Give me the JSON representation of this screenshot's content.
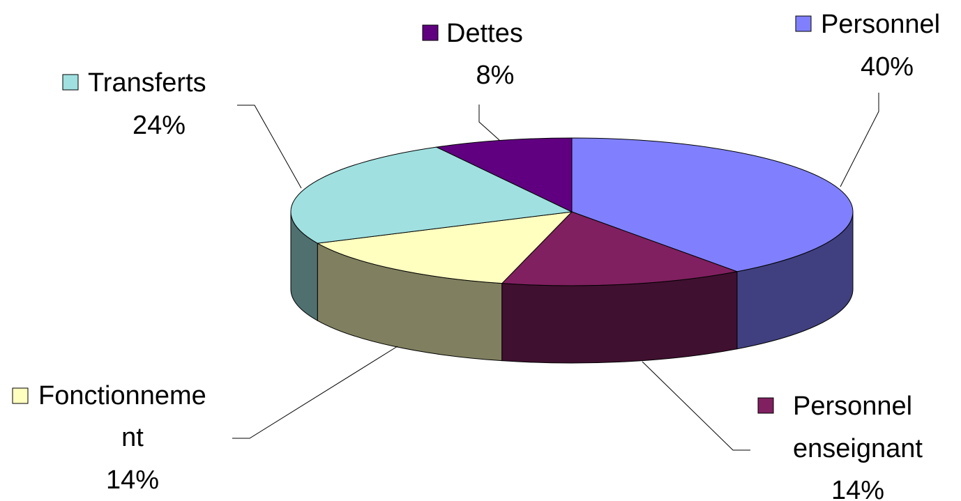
{
  "chart_data": {
    "type": "pie",
    "style": "3d",
    "legend": "none",
    "slices": [
      {
        "label": "Personnel",
        "value": 40,
        "value_label": "40%",
        "color": "#8080FF",
        "side_color": "#404080"
      },
      {
        "label": "Personnel enseignant",
        "value": 14,
        "value_label": "14%",
        "color": "#802060",
        "side_color": "#401030"
      },
      {
        "label": "Fonctionnement",
        "value": 14,
        "value_label": "14%",
        "color": "#FFFFC0",
        "side_color": "#808060"
      },
      {
        "label": "Transferts",
        "value": 24,
        "value_label": "24%",
        "color": "#A0E0E0",
        "side_color": "#507070"
      },
      {
        "label": "Dettes",
        "value": 8,
        "value_label": "8%",
        "color": "#600080",
        "side_color": "#300040"
      }
    ]
  }
}
